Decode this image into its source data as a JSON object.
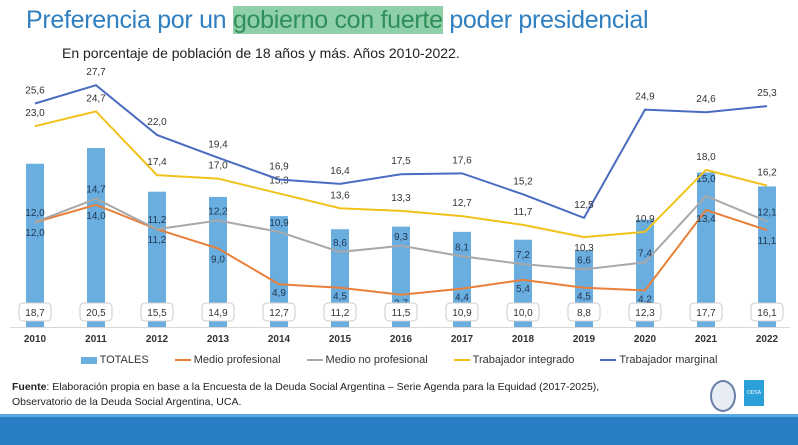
{
  "title": {
    "pre": "Preferencia por un ",
    "highlight": "gobierno con fuerte",
    "post": " poder presidencial"
  },
  "subtitle": "En porcentaje de población de 18 años y más. Años 2010-2022.",
  "chart_data": {
    "type": "bar+line",
    "title": "Preferencia por un gobierno con fuerte poder presidencial",
    "categories": [
      "2010",
      "2011",
      "2012",
      "2013",
      "2014",
      "2015",
      "2016",
      "2017",
      "2018",
      "2019",
      "2020",
      "2021",
      "2022"
    ],
    "series": [
      {
        "name": "TOTALES",
        "kind": "bar",
        "color": "#6aaee0",
        "values": [
          18.7,
          20.5,
          15.5,
          14.9,
          12.7,
          11.2,
          11.5,
          10.9,
          10.0,
          8.8,
          12.3,
          17.7,
          16.1
        ]
      },
      {
        "name": "Medio profesional",
        "kind": "line",
        "color": "#e8803a",
        "values": [
          12.0,
          14.0,
          11.2,
          9.0,
          4.9,
          4.5,
          3.7,
          4.4,
          5.4,
          4.5,
          4.2,
          13.4,
          11.1
        ]
      },
      {
        "name": "Medio no profesional",
        "kind": "line",
        "color": "#a8a8a8",
        "values": [
          12.0,
          14.7,
          11.2,
          12.2,
          10.9,
          8.6,
          9.3,
          8.1,
          7.2,
          6.6,
          7.4,
          15.0,
          12.1
        ]
      },
      {
        "name": "Trabajador integrado",
        "kind": "line",
        "color": "#f2c21c",
        "values": [
          23.0,
          24.7,
          17.4,
          17.0,
          15.3,
          13.6,
          13.3,
          12.7,
          11.7,
          10.3,
          10.9,
          18.0,
          16.2
        ]
      },
      {
        "name": "Trabajador marginal",
        "kind": "line",
        "color": "#4a6cc0",
        "values": [
          25.6,
          27.7,
          22.0,
          19.4,
          16.9,
          16.4,
          17.5,
          17.6,
          15.2,
          12.5,
          24.9,
          24.6,
          25.3
        ]
      }
    ],
    "ylim": [
      0,
      30
    ],
    "legend": "bottom",
    "grid": false
  },
  "source": {
    "label": "Fuente",
    "text": ": Elaboración propia en base a la Encuesta de la Deuda Social Argentina – Serie Agenda para la Equidad (2017-2025),",
    "line2": "Observatorio de la Deuda Social Argentina, UCA."
  },
  "logos": {
    "odsa": "ODSA"
  }
}
